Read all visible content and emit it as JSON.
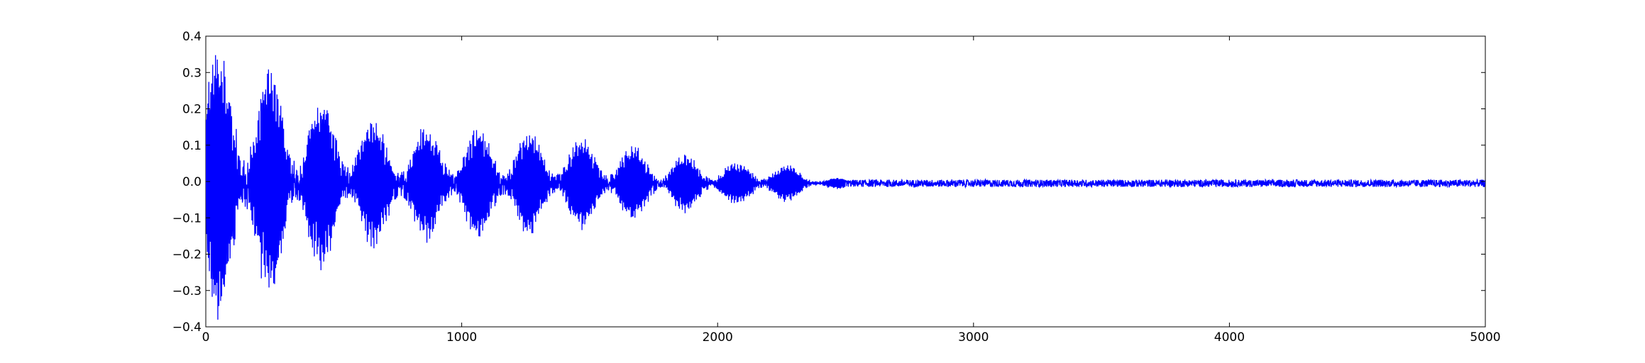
{
  "chart_data": {
    "type": "line",
    "title": "",
    "xlabel": "",
    "ylabel": "",
    "xlim": [
      0,
      5000
    ],
    "ylim": [
      -0.4,
      0.4
    ],
    "grid": false,
    "legend": "none",
    "x_ticks": [
      0,
      1000,
      2000,
      3000,
      4000,
      5000
    ],
    "x_tick_labels": [
      "0",
      "1000",
      "2000",
      "3000",
      "4000",
      "5000"
    ],
    "y_ticks": [
      -0.4,
      -0.3,
      -0.2,
      -0.1,
      0.0,
      0.1,
      0.2,
      0.3,
      0.4
    ],
    "y_tick_labels": [
      "−0.4",
      "−0.3",
      "−0.2",
      "−0.1",
      "0.0",
      "0.1",
      "0.2",
      "0.3",
      "0.4"
    ],
    "series": [
      {
        "color": "#0000ff",
        "n_samples": 5000,
        "description_envelope": [
          [
            0,
            0.35
          ],
          [
            150,
            0.33
          ],
          [
            300,
            0.27
          ],
          [
            500,
            0.2
          ],
          [
            700,
            0.15
          ],
          [
            1000,
            0.14
          ],
          [
            1300,
            0.13
          ],
          [
            1500,
            0.11
          ],
          [
            1700,
            0.09
          ],
          [
            1900,
            0.07
          ],
          [
            2100,
            0.05
          ],
          [
            2200,
            0.06
          ],
          [
            2300,
            0.04
          ],
          [
            2400,
            0.02
          ],
          [
            2500,
            0.012
          ],
          [
            5000,
            0.012
          ]
        ],
        "noise_floor": 0.01,
        "offset": -0.005
      }
    ]
  }
}
